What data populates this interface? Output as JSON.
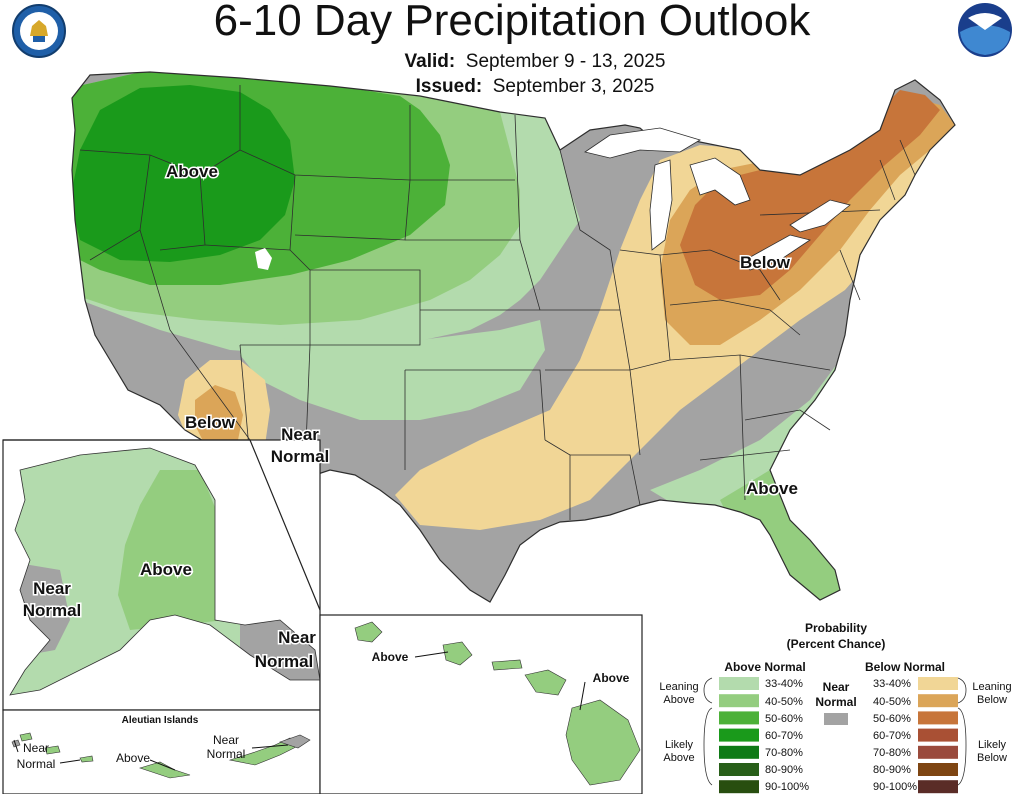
{
  "header": {
    "title": "6-10 Day Precipitation Outlook",
    "valid_label": "Valid:",
    "valid_value": "September 9 - 13, 2025",
    "issued_label": "Issued:",
    "issued_value": "September 3, 2025"
  },
  "logos": {
    "left": "doc-seal-icon",
    "right": "noaa-logo-icon"
  },
  "map_labels": {
    "nw_above": "Above",
    "sw_below": "Below",
    "sw_near_line1": "Near",
    "sw_near_line2": "Normal",
    "ne_below": "Below",
    "se_above": "Above",
    "ak_near_w_line1": "Near",
    "ak_near_w_line2": "Normal",
    "ak_above": "Above",
    "ak_near_se_line1": "Near",
    "ak_near_se_line2": "Normal",
    "aleutian_title": "Aleutian Islands",
    "aleutian_near_w_line1": "Near",
    "aleutian_near_w_line2": "Normal",
    "aleutian_above": "Above",
    "aleutian_near_e_line1": "Near",
    "aleutian_near_e_line2": "Normal",
    "hawaii_above_w": "Above",
    "hawaii_above_e": "Above"
  },
  "colors": {
    "above_33_40": "#b3dbad",
    "above_40_50": "#94cd7f",
    "above_50_60": "#4cb138",
    "above_60_70": "#1a9a1b",
    "above_70_80": "#0e7a16",
    "above_80_90": "#285f19",
    "above_90_100": "#284e0f",
    "near_normal": "#a3a3a3",
    "below_33_40": "#f1d696",
    "below_40_50": "#dba558",
    "below_50_60": "#c7753a",
    "below_60_70": "#a95034",
    "below_70_80": "#9a4a3c",
    "below_80_90": "#7e4512",
    "below_90_100": "#5a2c27",
    "water": "#ffffff",
    "state_border": "#2e2e2e"
  },
  "legend": {
    "title_line1": "Probability",
    "title_line2": "(Percent Chance)",
    "above_header": "Above Normal",
    "below_header": "Below Normal",
    "near_line1": "Near",
    "near_line2": "Normal",
    "leaning_above_line1": "Leaning",
    "leaning_above_line2": "Above",
    "likely_above_line1": "Likely",
    "likely_above_line2": "Above",
    "leaning_below_line1": "Leaning",
    "leaning_below_line2": "Below",
    "likely_below_line1": "Likely",
    "likely_below_line2": "Below",
    "above_ranges": [
      "33-40%",
      "40-50%",
      "50-60%",
      "60-70%",
      "70-80%",
      "80-90%",
      "90-100%"
    ],
    "below_ranges": [
      "33-40%",
      "40-50%",
      "50-60%",
      "60-70%",
      "70-80%",
      "80-90%",
      "90-100%"
    ]
  }
}
